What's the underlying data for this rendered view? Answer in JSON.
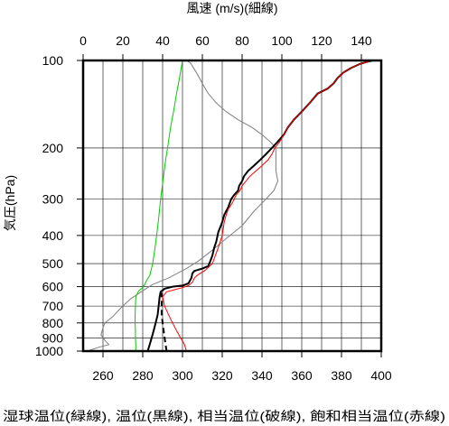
{
  "chart_data": {
    "type": "line",
    "top_axis_label": "風速 (m/s)(細線)",
    "left_axis_label": "気圧(hPa)",
    "caption": "湿球温位(緑線), 温位(黒線), 相当温位(破線), 飽和相当温位(赤線)",
    "y_axis": {
      "scale": "log",
      "lim": [
        1000,
        100
      ],
      "ticks": [
        100,
        200,
        300,
        400,
        500,
        600,
        700,
        800,
        900,
        1000
      ]
    },
    "bottom_axis": {
      "lim": [
        250,
        400
      ],
      "ticks": [
        260,
        280,
        300,
        320,
        340,
        360,
        380,
        400
      ]
    },
    "top_axis": {
      "lim": [
        0,
        150
      ],
      "ticks": [
        0,
        20,
        40,
        60,
        80,
        100,
        120,
        140
      ]
    },
    "grid": true,
    "series": [
      {
        "key": "wind",
        "axis": "top",
        "color": "#808080",
        "dash": false,
        "points": [
          [
            2,
            1000
          ],
          [
            8,
            970
          ],
          [
            13,
            950
          ],
          [
            11,
            920
          ],
          [
            9,
            880
          ],
          [
            10,
            830
          ],
          [
            11,
            800
          ],
          [
            15,
            760
          ],
          [
            19,
            710
          ],
          [
            24,
            660
          ],
          [
            30,
            620
          ],
          [
            35,
            590
          ],
          [
            43,
            560
          ],
          [
            52,
            520
          ],
          [
            58,
            490
          ],
          [
            65,
            450
          ],
          [
            72,
            410
          ],
          [
            80,
            370
          ],
          [
            86,
            330
          ],
          [
            92,
            300
          ],
          [
            96,
            280
          ],
          [
            98,
            260
          ],
          [
            97,
            240
          ],
          [
            97,
            220
          ],
          [
            97,
            200
          ],
          [
            94,
            190
          ],
          [
            90,
            180
          ],
          [
            85,
            170
          ],
          [
            78,
            160
          ],
          [
            72,
            150
          ],
          [
            67,
            140
          ],
          [
            63,
            130
          ],
          [
            60,
            120
          ],
          [
            57,
            110
          ],
          [
            54,
            102
          ],
          [
            52,
            100
          ]
        ]
      },
      {
        "key": "wet_bulb_potential_temperature",
        "axis": "bottom",
        "color": "#00cc00",
        "dash": false,
        "points": [
          [
            276.5,
            1000
          ],
          [
            276.5,
            950
          ],
          [
            276.3,
            900
          ],
          [
            276.3,
            850
          ],
          [
            276.2,
            800
          ],
          [
            276.2,
            750
          ],
          [
            276.3,
            700
          ],
          [
            276.5,
            650
          ],
          [
            278,
            620
          ],
          [
            280,
            605
          ],
          [
            281,
            590
          ],
          [
            282,
            570
          ],
          [
            283.5,
            550
          ],
          [
            285,
            500
          ],
          [
            286,
            450
          ],
          [
            287,
            400
          ],
          [
            288,
            350
          ],
          [
            289,
            300
          ],
          [
            290.5,
            250
          ],
          [
            291.5,
            220
          ],
          [
            292.5,
            200
          ],
          [
            294,
            170
          ],
          [
            295.5,
            150
          ],
          [
            297,
            130
          ],
          [
            298.5,
            115
          ],
          [
            300,
            100
          ]
        ]
      },
      {
        "key": "potential_temperature",
        "axis": "bottom",
        "color": "#000000",
        "dash": false,
        "width": 2,
        "points": [
          [
            282.5,
            1000
          ],
          [
            283.5,
            950
          ],
          [
            284.5,
            900
          ],
          [
            285.5,
            850
          ],
          [
            286.5,
            800
          ],
          [
            287.5,
            750
          ],
          [
            288,
            700
          ],
          [
            288.5,
            650
          ],
          [
            289,
            625
          ],
          [
            291,
            610
          ],
          [
            295,
            600
          ],
          [
            300,
            595
          ],
          [
            303,
            585
          ],
          [
            304.5,
            560
          ],
          [
            305,
            540
          ],
          [
            306,
            530
          ],
          [
            310,
            520
          ],
          [
            313,
            510
          ],
          [
            314,
            490
          ],
          [
            315,
            470
          ],
          [
            316,
            440
          ],
          [
            317,
            420
          ],
          [
            318,
            390
          ],
          [
            319,
            375
          ],
          [
            320,
            360
          ],
          [
            321,
            340
          ],
          [
            323,
            320
          ],
          [
            324.5,
            300
          ],
          [
            326,
            290
          ],
          [
            328,
            280
          ],
          [
            328.5,
            270
          ],
          [
            330,
            260
          ],
          [
            331,
            250
          ],
          [
            333,
            240
          ],
          [
            336,
            230
          ],
          [
            339,
            220
          ],
          [
            342,
            210
          ],
          [
            345,
            200
          ],
          [
            348,
            190
          ],
          [
            351,
            180
          ],
          [
            353,
            170
          ],
          [
            356,
            160
          ],
          [
            360,
            150
          ],
          [
            364,
            140
          ],
          [
            368,
            130
          ],
          [
            373,
            125
          ],
          [
            376,
            120
          ],
          [
            378,
            115
          ],
          [
            381,
            110
          ],
          [
            385,
            106
          ],
          [
            389,
            103
          ],
          [
            393,
            101
          ],
          [
            396,
            100
          ]
        ]
      },
      {
        "key": "equivalent_potential_temperature",
        "axis": "bottom",
        "color": "#000000",
        "dash": true,
        "width": 2,
        "points": [
          [
            292,
            1000
          ],
          [
            291.5,
            950
          ],
          [
            291,
            900
          ],
          [
            290.5,
            850
          ],
          [
            290,
            800
          ],
          [
            289.5,
            750
          ],
          [
            289.5,
            700
          ],
          [
            289.5,
            650
          ],
          [
            289.5,
            630
          ]
        ]
      },
      {
        "key": "saturated_equivalent_potential_temperature",
        "axis": "bottom",
        "color": "#ff0000",
        "dash": false,
        "points": [
          [
            302,
            1000
          ],
          [
            301,
            950
          ],
          [
            299,
            900
          ],
          [
            297,
            850
          ],
          [
            295,
            800
          ],
          [
            293,
            750
          ],
          [
            291,
            700
          ],
          [
            290,
            650
          ],
          [
            292,
            625
          ],
          [
            296,
            615
          ],
          [
            300,
            605
          ],
          [
            303,
            595
          ],
          [
            305,
            580
          ],
          [
            306,
            560
          ],
          [
            308,
            545
          ],
          [
            311,
            530
          ],
          [
            313,
            515
          ],
          [
            315,
            500
          ],
          [
            316,
            480
          ],
          [
            317,
            460
          ],
          [
            318,
            440
          ],
          [
            319,
            420
          ],
          [
            320,
            400
          ],
          [
            320.5,
            380
          ],
          [
            321,
            360
          ],
          [
            322,
            340
          ],
          [
            323,
            325
          ],
          [
            325,
            310
          ],
          [
            326,
            300
          ],
          [
            327,
            290
          ],
          [
            329,
            280
          ],
          [
            330,
            270
          ],
          [
            332,
            260
          ],
          [
            334,
            250
          ],
          [
            337,
            240
          ],
          [
            340,
            230
          ],
          [
            343,
            220
          ],
          [
            345,
            210
          ],
          [
            346.5,
            200
          ],
          [
            349,
            190
          ],
          [
            351,
            180
          ],
          [
            353,
            170
          ],
          [
            356,
            160
          ],
          [
            360,
            150
          ],
          [
            364,
            140
          ],
          [
            368,
            130
          ],
          [
            373,
            125
          ],
          [
            376,
            120
          ],
          [
            378,
            115
          ],
          [
            381,
            110
          ],
          [
            385,
            106
          ],
          [
            389,
            103
          ],
          [
            393,
            101
          ],
          [
            396,
            100
          ]
        ]
      }
    ]
  }
}
